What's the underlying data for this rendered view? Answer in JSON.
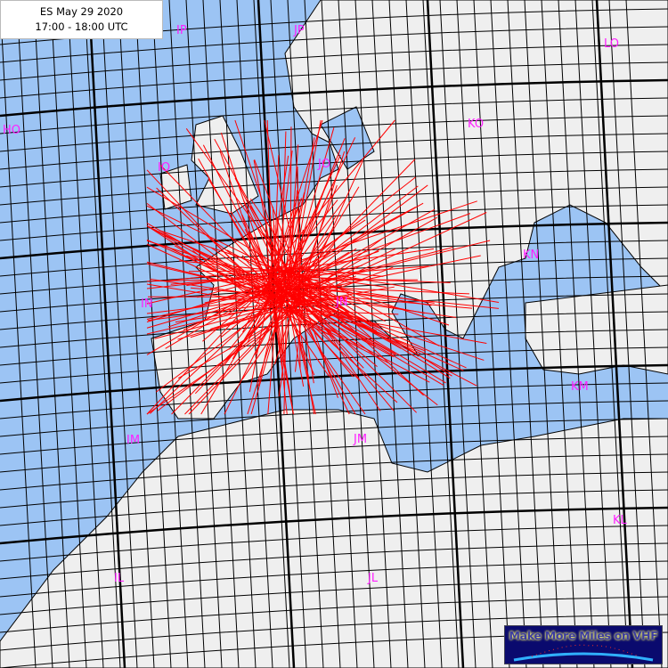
{
  "title": {
    "line1": "ES May 29 2020",
    "line2": "17:00 - 18:00 UTC"
  },
  "logo": {
    "text": "Make More Miles on VHF"
  },
  "colors": {
    "sea": "#9cc4f4",
    "land": "#efefef",
    "paths": "#ff0000",
    "field_labels": "#ff20ff",
    "grid": "#000000"
  },
  "field_labels": [
    {
      "label": "IP"
    },
    {
      "label": "JP"
    },
    {
      "label": "LO"
    },
    {
      "label": "HO"
    },
    {
      "label": "IO"
    },
    {
      "label": "JO"
    },
    {
      "label": "KO"
    },
    {
      "label": "IN"
    },
    {
      "label": "JN"
    },
    {
      "label": "KN"
    },
    {
      "label": "IM"
    },
    {
      "label": "JM"
    },
    {
      "label": "KM"
    },
    {
      "label": "IL"
    },
    {
      "label": "JL"
    },
    {
      "label": "KL"
    }
  ]
}
